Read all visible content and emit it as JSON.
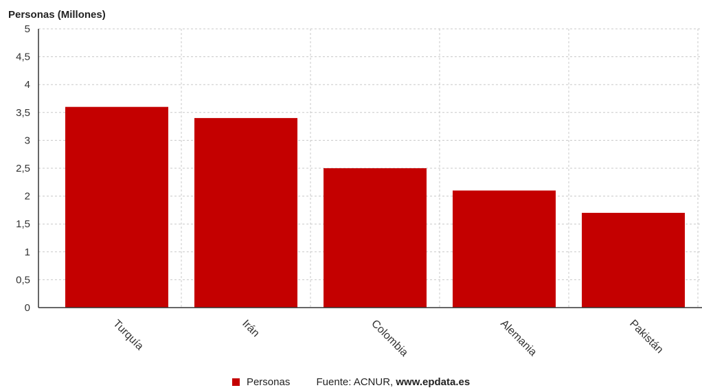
{
  "chart_data": {
    "type": "bar",
    "ylabel": "Personas (Millones)",
    "categories": [
      "Turquía",
      "Irán",
      "Colombia",
      "Alemania",
      "Pakistán"
    ],
    "series": [
      {
        "name": "Personas",
        "values": [
          3.6,
          3.4,
          2.5,
          2.1,
          1.7
        ],
        "color": "#c40000"
      }
    ],
    "ylim": [
      0,
      5
    ],
    "yticks": [
      "0",
      "0,5",
      "1",
      "1,5",
      "2",
      "2,5",
      "3",
      "3,5",
      "4",
      "4,5",
      "5"
    ],
    "grid": true,
    "legend_position": "bottom-center"
  },
  "footer": {
    "source_prefix": "Fuente: ACNUR, ",
    "source_site": "www.epdata.es"
  }
}
